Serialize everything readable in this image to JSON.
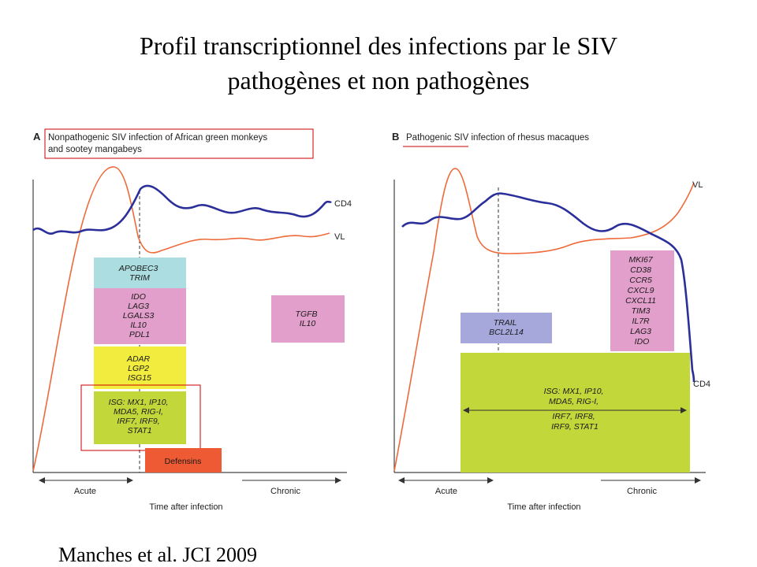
{
  "title": {
    "line1": "Profil transcriptionnel des infections par le SIV",
    "line2": "pathogènes et non pathogènes"
  },
  "citation": "Manches et al. JCI 2009",
  "panel_a": {
    "letter": "A",
    "heading_line1": "Nonpathogenic SIV infection of African green monkeys",
    "heading_line2": "and sootey mangabeys",
    "cd4_label": "CD4",
    "vl_label": "VL",
    "boxes": {
      "apobec": [
        "APOBEC3",
        "TRIM"
      ],
      "ido": [
        "IDO",
        "LAG3",
        "LGALS3",
        "IL10",
        "PDL1"
      ],
      "adar": [
        "ADAR",
        "LGP2",
        "ISG15"
      ],
      "isg": [
        "ISG: MX1, IP10,",
        "MDA5, RIG-I,",
        "IRF7, IRF9,",
        "STAT1"
      ],
      "tgfb": [
        "TGFB",
        "IL10"
      ],
      "defensins": [
        "Defensins"
      ]
    },
    "acute_label": "Acute",
    "chronic_label": "Chronic",
    "xlabel": "Time after infection"
  },
  "panel_b": {
    "letter": "B",
    "heading": "Pathogenic SIV infection of rhesus macaques",
    "cd4_label": "CD4",
    "vl_label": "VL",
    "boxes": {
      "trail": [
        "TRAIL",
        "BCL2L14"
      ],
      "mki": [
        "MKI67",
        "CD38",
        "CCR5",
        "CXCL9",
        "CXCL11",
        "TIM3",
        "IL7R",
        "LAG3",
        "IDO"
      ],
      "isg": [
        "ISG: MX1, IP10,",
        "MDA5, RIG-I,",
        "IRF7, IRF8,",
        "IRF9, STAT1"
      ]
    },
    "acute_label": "Acute",
    "chronic_label": "Chronic",
    "xlabel": "Time after infection"
  },
  "colors": {
    "cd4_line": "#2b2f9a",
    "vl_line": "#ef6a3a",
    "apobec_box": "#acdde0",
    "ido_box": "#e39fcb",
    "adar_box": "#f2ec3e",
    "isg_box": "#c2d73a",
    "defensins_box": "#ee5a33",
    "trail_box": "#a6a8dc",
    "highlight_outline": "#cc0000"
  }
}
